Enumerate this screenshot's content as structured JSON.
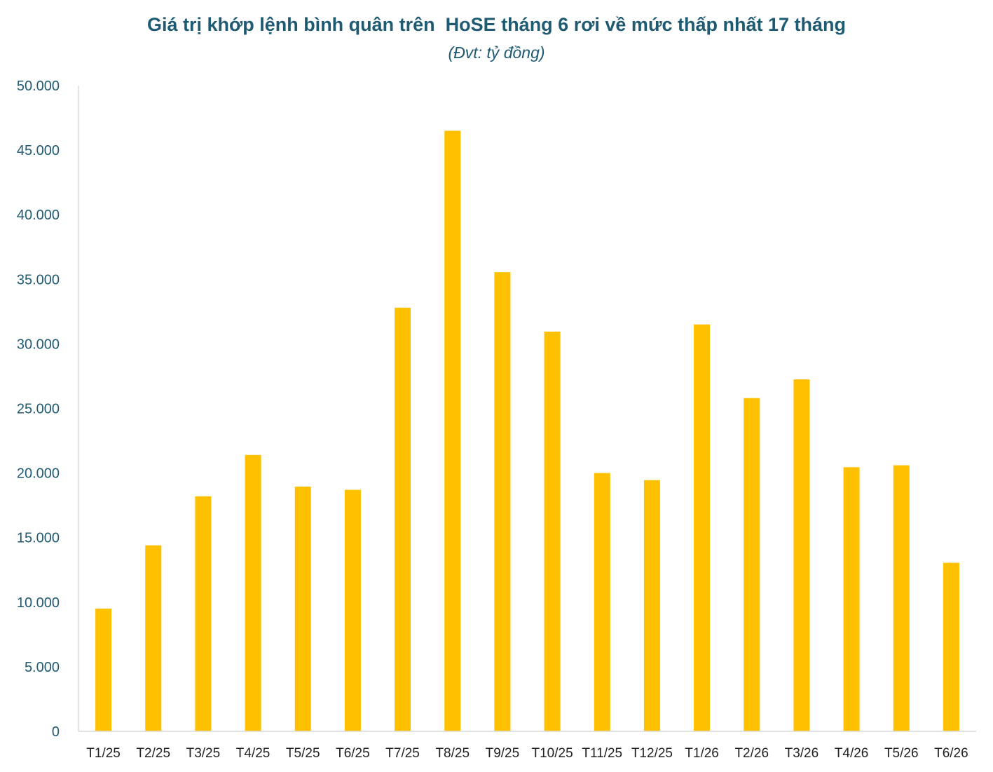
{
  "chart_data": {
    "type": "bar",
    "title": "Giá trị khớp lệnh bình quân trên  HoSE tháng 6 rơi về mức thấp nhất 17 tháng",
    "subtitle": "(Đvt: tỷ đồng)",
    "xlabel": "",
    "ylabel": "",
    "ylim": [
      0,
      50000
    ],
    "yticks": [
      0,
      5000,
      10000,
      15000,
      20000,
      25000,
      30000,
      35000,
      40000,
      45000,
      50000
    ],
    "ytick_labels": [
      "0",
      "5.000",
      "10.000",
      "15.000",
      "20.000",
      "25.000",
      "30.000",
      "35.000",
      "40.000",
      "45.000",
      "50.000"
    ],
    "grid": false,
    "legend": "none",
    "bar_color": "#ffc000",
    "axis_color": "#d9d9d9",
    "categories": [
      "T1/25",
      "T2/25",
      "T3/25",
      "T4/25",
      "T5/25",
      "T6/25",
      "T7/25",
      "T8/25",
      "T9/25",
      "T10/25",
      "T11/25",
      "T12/25",
      "T1/26",
      "T2/26",
      "T3/26",
      "T4/26",
      "T5/26",
      "T6/26"
    ],
    "values": [
      9500,
      14400,
      18200,
      21400,
      18950,
      18700,
      32800,
      46500,
      35550,
      30950,
      20000,
      19450,
      31500,
      25800,
      27250,
      20450,
      20600,
      13050
    ]
  }
}
